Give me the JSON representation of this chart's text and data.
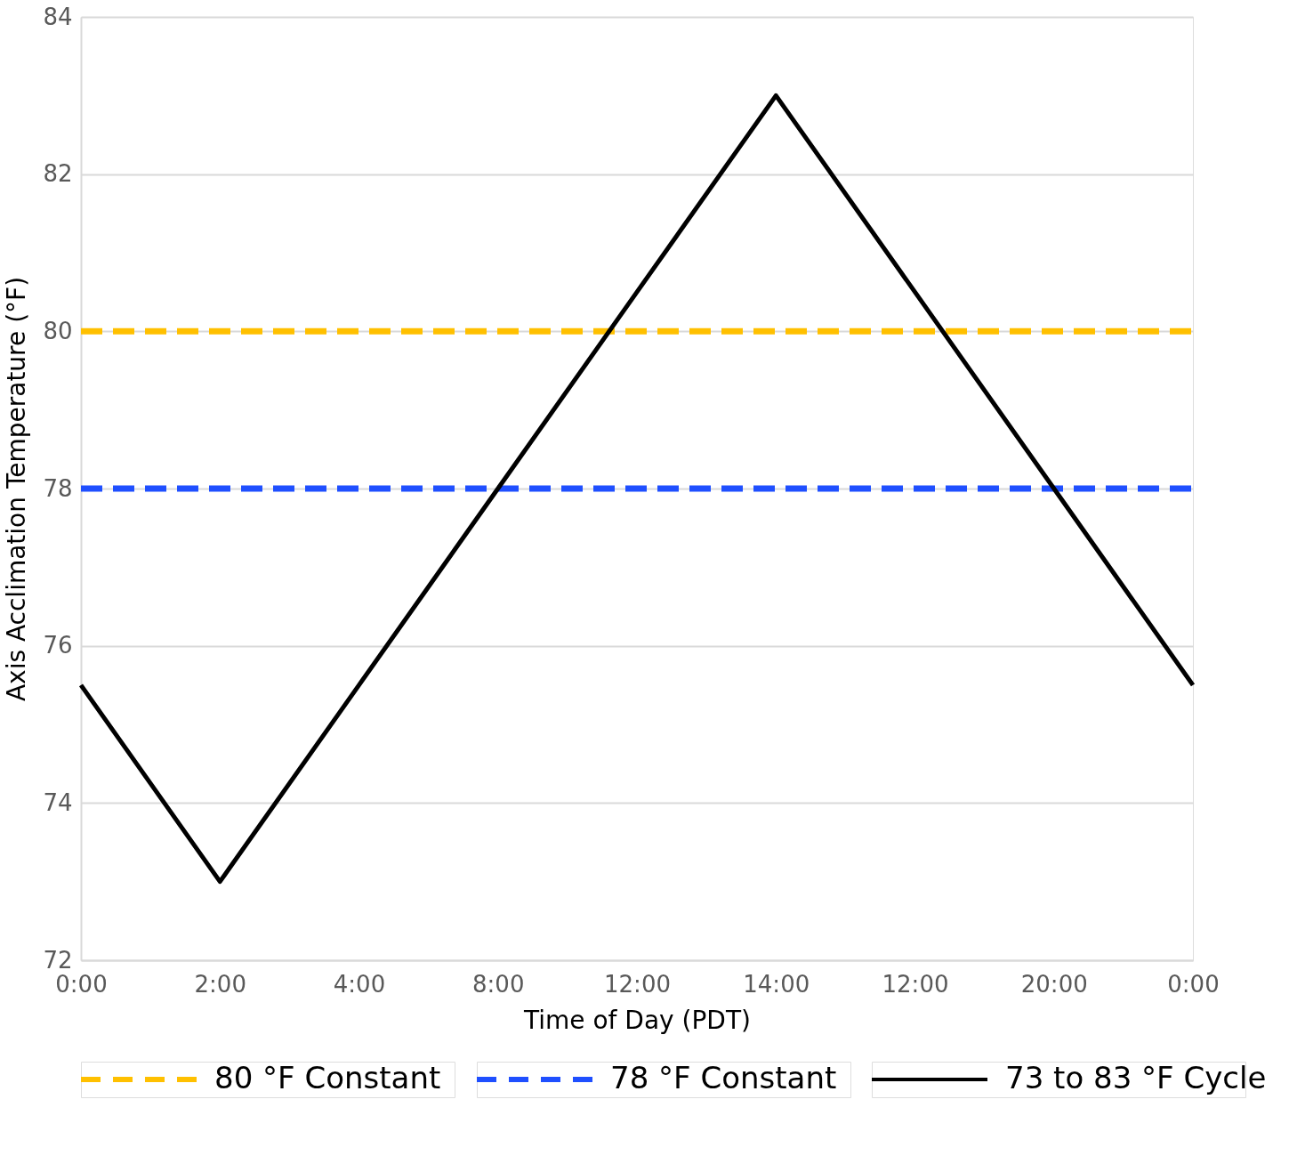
{
  "chart_data": {
    "type": "line",
    "xlabel": "Time of Day (PDT)",
    "ylabel": "Axis Acclimation Temperature (°F)",
    "categories": [
      "0:00",
      "2:00",
      "4:00",
      "8:00",
      "12:00",
      "14:00",
      "12:00",
      "20:00",
      "0:00"
    ],
    "series": [
      {
        "name": "80 °F Constant",
        "color": "#ffc000",
        "line_style": "dashed",
        "values": [
          80,
          80,
          80,
          80,
          80,
          80,
          80,
          80,
          80
        ]
      },
      {
        "name": "78 °F Constant",
        "color": "#1f4fff",
        "line_style": "dashed",
        "values": [
          78,
          78,
          78,
          78,
          78,
          78,
          78,
          78,
          78
        ]
      },
      {
        "name": "73 to 83 °F Cycle",
        "color": "#000000",
        "line_style": "solid",
        "values": [
          75.5,
          73,
          75.5,
          78,
          80.5,
          83,
          80.5,
          78,
          75.5
        ]
      }
    ],
    "ylim": [
      72,
      84
    ],
    "yticks": [
      72,
      74,
      76,
      78,
      80,
      82,
      84
    ],
    "grid": "y",
    "legend": "bottom",
    "marker": "none"
  }
}
